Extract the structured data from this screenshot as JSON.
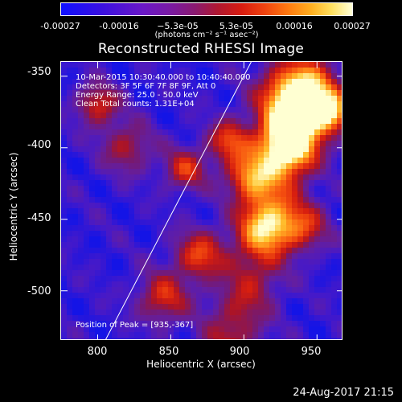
{
  "colorbar": {
    "tick_labels": [
      "-0.00027",
      "-0.00016",
      "−5.3e-05",
      "5.3e-05",
      "0.00016",
      "0.00027"
    ],
    "units": "(photons cm⁻² s⁻¹ asec⁻²)",
    "range": [
      -0.00027,
      0.00027
    ]
  },
  "chart_data": {
    "type": "heatmap",
    "title": "Reconstructed RHESSI Image",
    "xlabel": "Heliocentric X (arcsec)",
    "ylabel": "Heliocentric Y (arcsec)",
    "xlim": [
      775,
      968
    ],
    "ylim": [
      -535,
      -340
    ],
    "x_ticks": [
      "800",
      "850",
      "900",
      "950"
    ],
    "y_ticks": [
      "-350",
      "-400",
      "-450",
      "-500"
    ],
    "limb_line": {
      "x": [
        805,
        905
      ],
      "y": [
        -535,
        -340
      ]
    },
    "peak": {
      "x": 935,
      "y": -367
    },
    "ridge": [
      [
        890,
        -535
      ],
      [
        906,
        -490
      ],
      [
        918,
        -440
      ],
      [
        930,
        -400
      ],
      [
        945,
        -355
      ]
    ],
    "blobs": [
      [
        935,
        -367,
        0.95,
        16
      ],
      [
        930,
        -398,
        0.85,
        13
      ],
      [
        958,
        -375,
        0.7,
        10
      ],
      [
        905,
        -420,
        0.6,
        12
      ],
      [
        915,
        -455,
        0.55,
        12
      ],
      [
        870,
        -475,
        0.5,
        12
      ],
      [
        845,
        -505,
        0.45,
        12
      ],
      [
        860,
        -415,
        0.45,
        10
      ],
      [
        820,
        -400,
        0.35,
        12
      ],
      [
        800,
        -370,
        0.45,
        10
      ],
      [
        890,
        -395,
        0.5,
        10
      ],
      [
        940,
        -455,
        0.45,
        12
      ]
    ],
    "annotations": [
      "10-Mar-2015 10:30:40.000 to 10:40:40.000",
      "Detectors: 3F 5F 6F 7F 8F 9F, Att 0",
      "Energy Range: 25.0 - 50.0 keV",
      "Clean     Total counts: 1.31E+04"
    ],
    "peak_label": "Position of Peak = [935,-367]"
  },
  "footer": {
    "date": "24-Aug-2017 21:15"
  }
}
